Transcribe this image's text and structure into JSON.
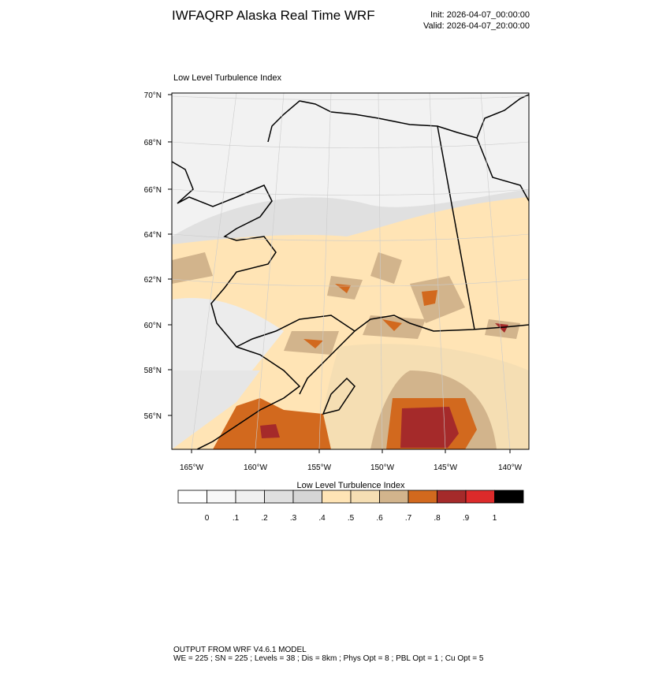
{
  "header": {
    "title": "IWFAQRP Alaska Real Time WRF",
    "init": "Init: 2026-04-07_00:00:00",
    "valid": "Valid: 2026-04-07_20:00:00"
  },
  "map": {
    "title": "Low Level Turbulence Index",
    "lat_labels": [
      "70°N",
      "68°N",
      "66°N",
      "64°N",
      "62°N",
      "60°N",
      "58°N",
      "56°N"
    ],
    "lon_labels": [
      "165°W",
      "160°W",
      "155°W",
      "150°W",
      "145°W",
      "140°W"
    ]
  },
  "colorbar": {
    "title": "Low Level Turbulence Index",
    "colors": [
      "#ffffff",
      "#f8f8f8",
      "#f0f0f0",
      "#e0e0e0",
      "#d6d6d6",
      "#ffe4b5",
      "#f5deb3",
      "#d2b48c",
      "#d2691e",
      "#a52a2a",
      "#dc2a2a",
      "#000000"
    ],
    "labels": [
      "0",
      ".1",
      ".2",
      ".3",
      ".4",
      ".5",
      ".6",
      ".7",
      ".8",
      ".9",
      "1"
    ]
  },
  "footer": [
    "OUTPUT FROM WRF V4.6.1 MODEL",
    "WE = 225 ; SN = 225 ; Levels = 38 ; Dis = 8km ; Phys Opt = 8 ; PBL Opt = 1 ; Cu Opt = 5"
  ]
}
